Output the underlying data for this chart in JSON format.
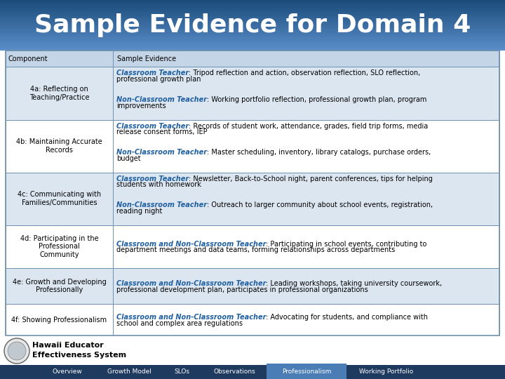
{
  "title": "Sample Evidence for Domain 4",
  "title_color": "#ffffff",
  "header_row": [
    "Component",
    "Sample Evidence"
  ],
  "header_bg": "#c5d5e8",
  "row_bg_odd": "#dce6f1",
  "row_bg_even": "#ffffff",
  "border_color": "#7090b0",
  "label_color": "#2060a0",
  "rows": [
    {
      "component": "4a: Reflecting on\nTeaching/Practice",
      "parts": [
        {
          "label": "Classroom Teacher",
          "text": ": Tripod reflection and action, observation reflection, SLO reflection,\nprofessional growth plan"
        },
        {
          "label": "Non-Classroom Teacher",
          "text": ": Working portfolio reflection, professional growth plan, program\nimprovements"
        }
      ]
    },
    {
      "component": "4b: Maintaining Accurate\nRecords",
      "parts": [
        {
          "label": "Classroom Teacher",
          "text": ": Records of student work, attendance, grades, field trip forms, media\nrelease consent forms, IEP"
        },
        {
          "label": "Non-Classroom Teacher",
          "text": ": Master scheduling, inventory, library catalogs, purchase orders,\nbudget"
        }
      ]
    },
    {
      "component": "4c: Communicating with\nFamilies/Communities",
      "parts": [
        {
          "label": "Classroom Teacher",
          "text": ": Newsletter, Back-to-School night, parent conferences, tips for helping\nstudents with homework"
        },
        {
          "label": "Non-Classroom Teacher",
          "text": ": Outreach to larger community about school events, registration,\nreading night"
        }
      ]
    },
    {
      "component": "4d: Participating in the\nProfessional\nCommunity",
      "parts": [
        {
          "label": "Classroom and Non-Classroom Teacher",
          "text": ": Participating in school events, contributing to\ndepartment meetings and data teams, forming relationships across departments"
        }
      ]
    },
    {
      "component": "4e: Growth and Developing\nProfessionally",
      "parts": [
        {
          "label": "Classroom and Non-Classroom Teacher",
          "text": ": Leading workshops, taking university coursework,\nprofessional development plan, participates in professional organizations"
        }
      ]
    },
    {
      "component": "4f: Showing Professionalism",
      "parts": [
        {
          "label": "Classroom and Non-Classroom Teacher",
          "text": ": Advocating for students, and compliance with\nschool and complex area regulations"
        }
      ]
    }
  ],
  "footer_tabs": [
    "Overview",
    "Growth Model",
    "SLOs",
    "Observations",
    "Professionalism",
    "Working Portfolio"
  ],
  "footer_active_tab": "Professionalism",
  "footer_bg": "#1e3a5f",
  "footer_active_color": "#4a7db5"
}
